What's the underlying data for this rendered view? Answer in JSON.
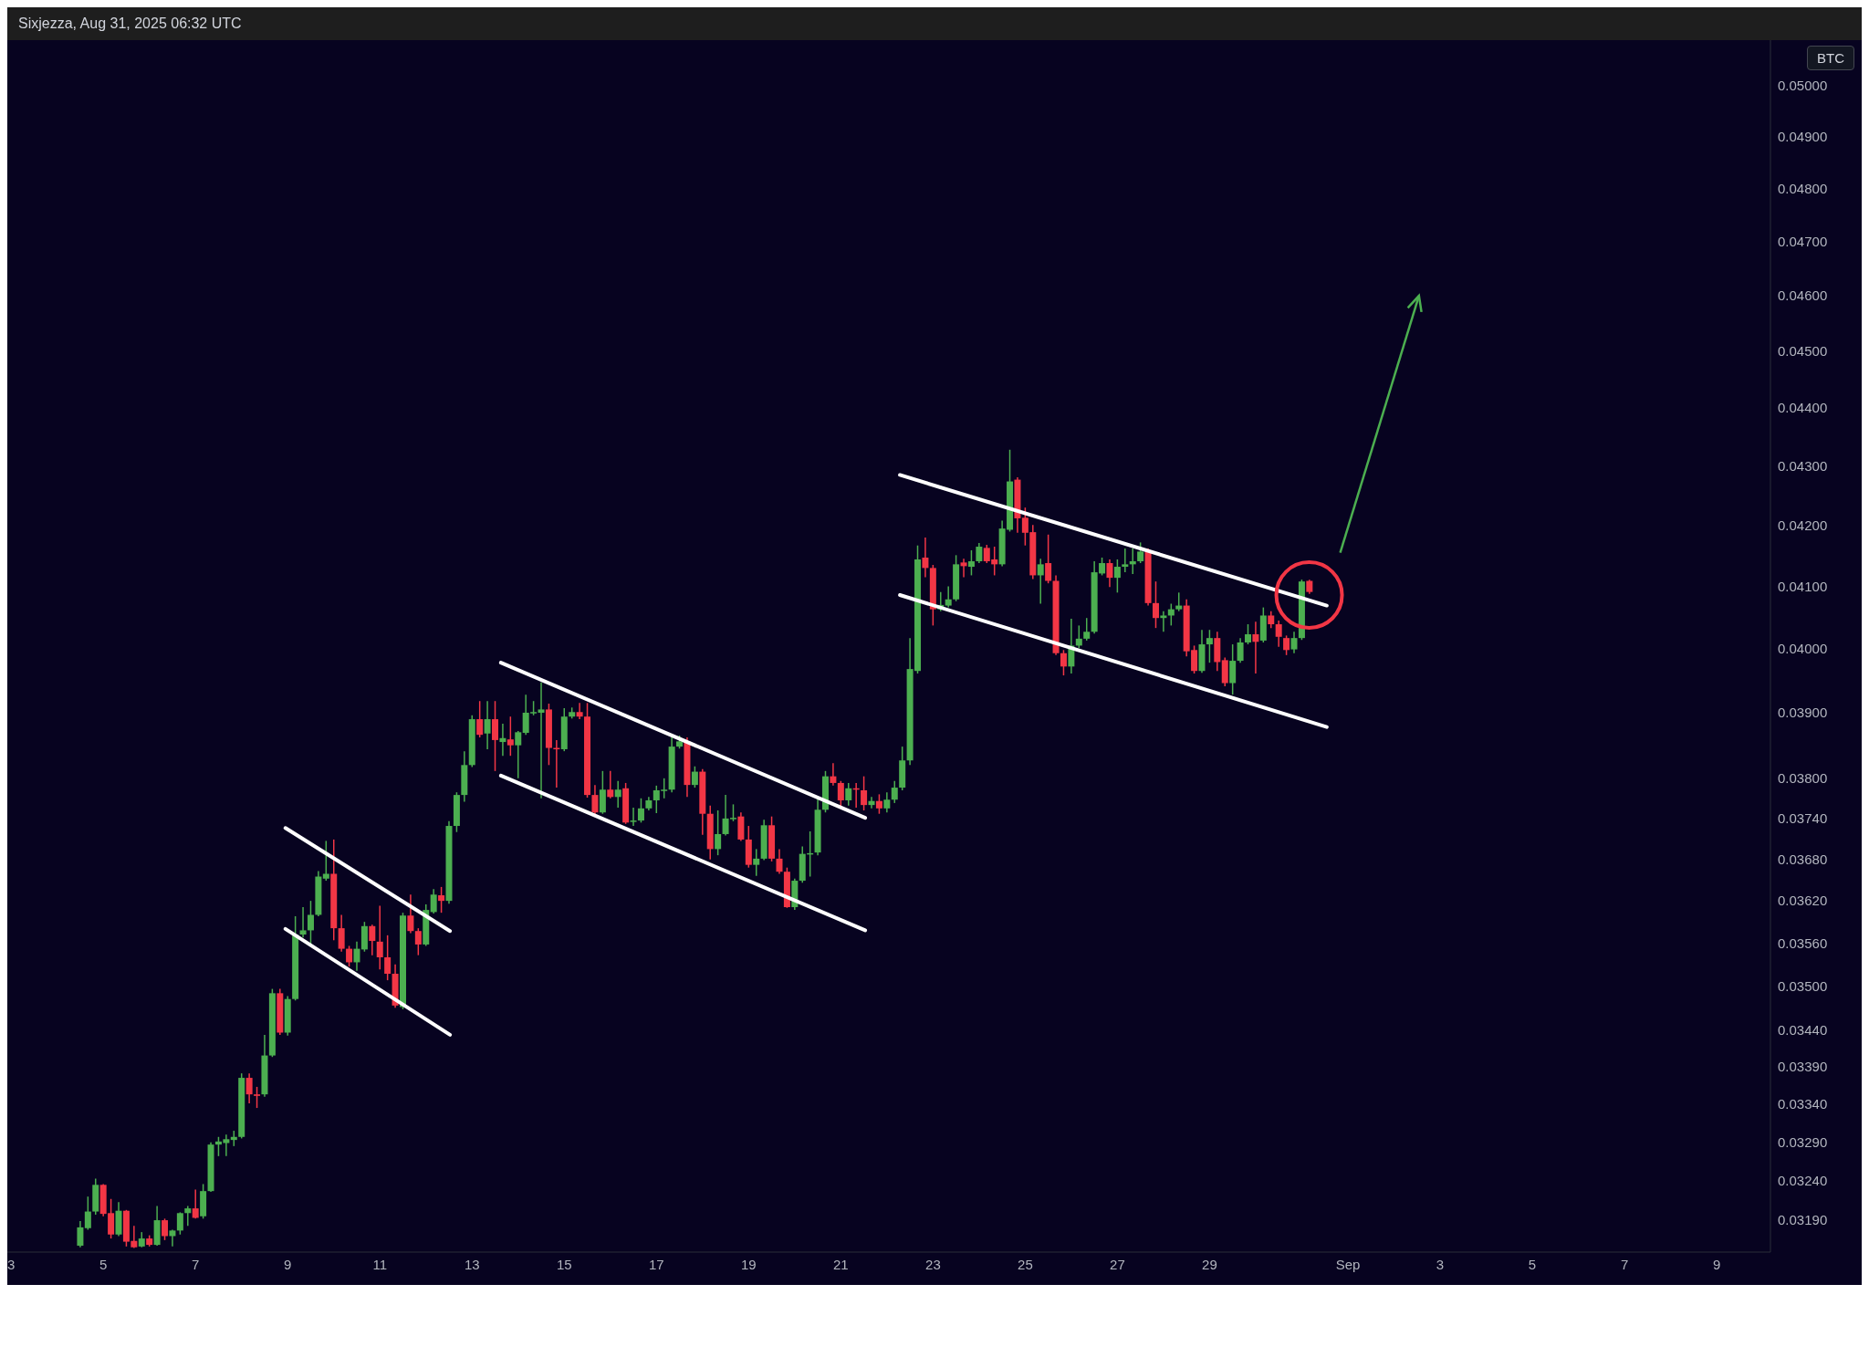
{
  "chart_data": {
    "type": "candlestick",
    "annotations": [
      "Sixjezza, Aug 31, 2025 06:32 UTC"
    ],
    "ylabel": "BTC",
    "log": true,
    "xlim": [
      "2025-08-02T22:00",
      "2025-09-10T04:00"
    ],
    "xticks": [
      {
        "value": "2025-08-03",
        "label": "3"
      },
      {
        "value": "2025-08-05",
        "label": "5"
      },
      {
        "value": "2025-08-07",
        "label": "7"
      },
      {
        "value": "2025-08-09",
        "label": "9"
      },
      {
        "value": "2025-08-11",
        "label": "11"
      },
      {
        "value": "2025-08-13",
        "label": "13"
      },
      {
        "value": "2025-08-15",
        "label": "15"
      },
      {
        "value": "2025-08-17",
        "label": "17"
      },
      {
        "value": "2025-08-19",
        "label": "19"
      },
      {
        "value": "2025-08-21",
        "label": "21"
      },
      {
        "value": "2025-08-23",
        "label": "23"
      },
      {
        "value": "2025-08-25",
        "label": "25"
      },
      {
        "value": "2025-08-27",
        "label": "27"
      },
      {
        "value": "2025-08-29",
        "label": "29"
      },
      {
        "value": "2025-09-01",
        "label": "Sep"
      },
      {
        "value": "2025-09-03",
        "label": "3"
      },
      {
        "value": "2025-09-05",
        "label": "5"
      },
      {
        "value": "2025-09-07",
        "label": "7"
      },
      {
        "value": "2025-09-09",
        "label": "9"
      }
    ],
    "ylim": [
      0.0315,
      0.0509
    ],
    "yticks": [
      {
        "value": 0.05,
        "label": "0.05000"
      },
      {
        "value": 0.049,
        "label": "0.04900"
      },
      {
        "value": 0.048,
        "label": "0.04800"
      },
      {
        "value": 0.047,
        "label": "0.04700"
      },
      {
        "value": 0.046,
        "label": "0.04600"
      },
      {
        "value": 0.045,
        "label": "0.04500"
      },
      {
        "value": 0.044,
        "label": "0.04400"
      },
      {
        "value": 0.043,
        "label": "0.04300"
      },
      {
        "value": 0.042,
        "label": "0.04200"
      },
      {
        "value": 0.041,
        "label": "0.04100"
      },
      {
        "value": 0.04,
        "label": "0.04000"
      },
      {
        "value": 0.039,
        "label": "0.03900"
      },
      {
        "value": 0.038,
        "label": "0.03800"
      },
      {
        "value": 0.0374,
        "label": "0.03740"
      },
      {
        "value": 0.0368,
        "label": "0.03680"
      },
      {
        "value": 0.0362,
        "label": "0.03620"
      },
      {
        "value": 0.0356,
        "label": "0.03560"
      },
      {
        "value": 0.035,
        "label": "0.03500"
      },
      {
        "value": 0.0344,
        "label": "0.03440"
      },
      {
        "value": 0.0339,
        "label": "0.03390"
      },
      {
        "value": 0.0334,
        "label": "0.03340"
      },
      {
        "value": 0.0329,
        "label": "0.03290"
      },
      {
        "value": 0.0324,
        "label": "0.03240"
      },
      {
        "value": 0.0319,
        "label": "0.03190"
      }
    ],
    "x": [
      "2025-08-04T12:00",
      "2025-08-04T16:00",
      "2025-08-04T20:00",
      "2025-08-05T00:00",
      "2025-08-05T04:00",
      "2025-08-05T08:00",
      "2025-08-05T12:00",
      "2025-08-05T16:00",
      "2025-08-05T20:00",
      "2025-08-06T00:00",
      "2025-08-06T04:00",
      "2025-08-06T08:00",
      "2025-08-06T12:00",
      "2025-08-06T16:00",
      "2025-08-06T20:00",
      "2025-08-07T00:00",
      "2025-08-07T04:00",
      "2025-08-07T08:00",
      "2025-08-07T12:00",
      "2025-08-07T16:00",
      "2025-08-07T20:00",
      "2025-08-08T00:00",
      "2025-08-08T04:00",
      "2025-08-08T08:00",
      "2025-08-08T12:00",
      "2025-08-08T16:00",
      "2025-08-08T20:00",
      "2025-08-09T00:00",
      "2025-08-09T04:00",
      "2025-08-09T08:00",
      "2025-08-09T12:00",
      "2025-08-09T16:00",
      "2025-08-09T20:00",
      "2025-08-10T00:00",
      "2025-08-10T04:00",
      "2025-08-10T08:00",
      "2025-08-10T12:00",
      "2025-08-10T16:00",
      "2025-08-10T20:00",
      "2025-08-11T00:00",
      "2025-08-11T04:00",
      "2025-08-11T08:00",
      "2025-08-11T12:00",
      "2025-08-11T16:00",
      "2025-08-11T20:00",
      "2025-08-12T00:00",
      "2025-08-12T04:00",
      "2025-08-12T08:00",
      "2025-08-12T12:00",
      "2025-08-12T16:00",
      "2025-08-12T20:00",
      "2025-08-13T00:00",
      "2025-08-13T04:00",
      "2025-08-13T08:00",
      "2025-08-13T12:00",
      "2025-08-13T16:00",
      "2025-08-13T20:00",
      "2025-08-14T00:00",
      "2025-08-14T04:00",
      "2025-08-14T08:00",
      "2025-08-14T12:00",
      "2025-08-14T16:00",
      "2025-08-14T20:00",
      "2025-08-15T00:00",
      "2025-08-15T04:00",
      "2025-08-15T08:00",
      "2025-08-15T12:00",
      "2025-08-15T16:00",
      "2025-08-15T20:00",
      "2025-08-16T00:00",
      "2025-08-16T04:00",
      "2025-08-16T08:00",
      "2025-08-16T12:00",
      "2025-08-16T16:00",
      "2025-08-16T20:00",
      "2025-08-17T00:00",
      "2025-08-17T04:00",
      "2025-08-17T08:00",
      "2025-08-17T12:00",
      "2025-08-17T16:00",
      "2025-08-17T20:00",
      "2025-08-18T00:00",
      "2025-08-18T04:00",
      "2025-08-18T08:00",
      "2025-08-18T12:00",
      "2025-08-18T16:00",
      "2025-08-18T20:00",
      "2025-08-19T00:00",
      "2025-08-19T04:00",
      "2025-08-19T08:00",
      "2025-08-19T12:00",
      "2025-08-19T16:00",
      "2025-08-19T20:00",
      "2025-08-20T00:00",
      "2025-08-20T04:00",
      "2025-08-20T08:00",
      "2025-08-20T12:00",
      "2025-08-20T16:00",
      "2025-08-20T20:00",
      "2025-08-21T00:00",
      "2025-08-21T04:00",
      "2025-08-21T08:00",
      "2025-08-21T12:00",
      "2025-08-21T16:00",
      "2025-08-21T20:00",
      "2025-08-22T00:00",
      "2025-08-22T04:00",
      "2025-08-22T08:00",
      "2025-08-22T12:00",
      "2025-08-22T16:00",
      "2025-08-22T20:00",
      "2025-08-23T00:00",
      "2025-08-23T04:00",
      "2025-08-23T08:00",
      "2025-08-23T12:00",
      "2025-08-23T16:00",
      "2025-08-23T20:00",
      "2025-08-24T00:00",
      "2025-08-24T04:00",
      "2025-08-24T08:00",
      "2025-08-24T12:00",
      "2025-08-24T16:00",
      "2025-08-24T20:00",
      "2025-08-25T00:00",
      "2025-08-25T04:00",
      "2025-08-25T08:00",
      "2025-08-25T12:00",
      "2025-08-25T16:00",
      "2025-08-25T20:00",
      "2025-08-26T00:00",
      "2025-08-26T04:00",
      "2025-08-26T08:00",
      "2025-08-26T12:00",
      "2025-08-26T16:00",
      "2025-08-26T20:00",
      "2025-08-27T00:00",
      "2025-08-27T04:00",
      "2025-08-27T08:00",
      "2025-08-27T12:00",
      "2025-08-27T16:00",
      "2025-08-27T20:00",
      "2025-08-28T00:00",
      "2025-08-28T04:00",
      "2025-08-28T08:00",
      "2025-08-28T12:00",
      "2025-08-28T16:00",
      "2025-08-28T20:00",
      "2025-08-29T00:00",
      "2025-08-29T04:00",
      "2025-08-29T08:00",
      "2025-08-29T12:00",
      "2025-08-29T16:00",
      "2025-08-29T20:00",
      "2025-08-30T00:00",
      "2025-08-30T04:00",
      "2025-08-30T08:00",
      "2025-08-30T12:00",
      "2025-08-30T16:00",
      "2025-08-30T20:00",
      "2025-08-31T00:00",
      "2025-08-31T04:00"
    ],
    "ohlc": [
      [
        0.03158,
        0.03189,
        0.03156,
        0.03181
      ],
      [
        0.0318,
        0.0322,
        0.03178,
        0.03201
      ],
      [
        0.03201,
        0.03243,
        0.03197,
        0.03235
      ],
      [
        0.03235,
        0.03236,
        0.03195,
        0.03198
      ],
      [
        0.03199,
        0.03217,
        0.03167,
        0.03172
      ],
      [
        0.03172,
        0.03213,
        0.0317,
        0.03202
      ],
      [
        0.03202,
        0.03203,
        0.03157,
        0.03163
      ],
      [
        0.03164,
        0.03183,
        0.03155,
        0.03156
      ],
      [
        0.03157,
        0.03175,
        0.03156,
        0.03167
      ],
      [
        0.03167,
        0.03171,
        0.03157,
        0.03159
      ],
      [
        0.03159,
        0.03208,
        0.03158,
        0.0319
      ],
      [
        0.0319,
        0.03192,
        0.03165,
        0.0317
      ],
      [
        0.0317,
        0.03178,
        0.03157,
        0.03177
      ],
      [
        0.03177,
        0.032,
        0.03172,
        0.03199
      ],
      [
        0.03199,
        0.03208,
        0.03183,
        0.03205
      ],
      [
        0.03205,
        0.03229,
        0.03192,
        0.03193
      ],
      [
        0.03195,
        0.03236,
        0.03192,
        0.03227
      ],
      [
        0.03227,
        0.0329,
        0.03226,
        0.03287
      ],
      [
        0.03287,
        0.03297,
        0.03272,
        0.03291
      ],
      [
        0.03289,
        0.033,
        0.03272,
        0.03294
      ],
      [
        0.03293,
        0.03305,
        0.03285,
        0.03297
      ],
      [
        0.03297,
        0.03381,
        0.03295,
        0.03375
      ],
      [
        0.03375,
        0.03381,
        0.03341,
        0.03353
      ],
      [
        0.03353,
        0.03363,
        0.03335,
        0.03351
      ],
      [
        0.03353,
        0.03433,
        0.0335,
        0.03405
      ],
      [
        0.03405,
        0.03496,
        0.03403,
        0.0349
      ],
      [
        0.0349,
        0.03496,
        0.03433,
        0.03436
      ],
      [
        0.03436,
        0.03486,
        0.03432,
        0.03482
      ],
      [
        0.03482,
        0.03598,
        0.0348,
        0.03572
      ],
      [
        0.03572,
        0.03611,
        0.03568,
        0.03578
      ],
      [
        0.03578,
        0.0362,
        0.03559,
        0.036
      ],
      [
        0.036,
        0.03663,
        0.03598,
        0.03655
      ],
      [
        0.03652,
        0.03707,
        0.03649,
        0.03659
      ],
      [
        0.03659,
        0.03709,
        0.03564,
        0.03581
      ],
      [
        0.03581,
        0.036,
        0.03548,
        0.03552
      ],
      [
        0.03552,
        0.03556,
        0.03527,
        0.03533
      ],
      [
        0.03533,
        0.03562,
        0.03521,
        0.03552
      ],
      [
        0.03551,
        0.0359,
        0.03548,
        0.03584
      ],
      [
        0.03584,
        0.03586,
        0.03543,
        0.03563
      ],
      [
        0.03562,
        0.03613,
        0.03523,
        0.0354
      ],
      [
        0.0354,
        0.03571,
        0.03508,
        0.03517
      ],
      [
        0.03517,
        0.0353,
        0.0347,
        0.03473
      ],
      [
        0.03471,
        0.03603,
        0.03468,
        0.03599
      ],
      [
        0.03599,
        0.03629,
        0.03574,
        0.03577
      ],
      [
        0.03577,
        0.03581,
        0.03543,
        0.03558
      ],
      [
        0.03558,
        0.03615,
        0.03556,
        0.03607
      ],
      [
        0.03604,
        0.03637,
        0.03602,
        0.03629
      ],
      [
        0.03628,
        0.0364,
        0.03603,
        0.0362
      ],
      [
        0.0362,
        0.03736,
        0.03616,
        0.03729
      ],
      [
        0.03729,
        0.03779,
        0.0372,
        0.03775
      ],
      [
        0.03775,
        0.03841,
        0.03765,
        0.0382
      ],
      [
        0.0382,
        0.03896,
        0.03817,
        0.0389
      ],
      [
        0.0389,
        0.03918,
        0.03862,
        0.03866
      ],
      [
        0.03868,
        0.03918,
        0.03844,
        0.0389
      ],
      [
        0.0389,
        0.03918,
        0.03811,
        0.03858
      ],
      [
        0.03855,
        0.03883,
        0.03834,
        0.03861
      ],
      [
        0.03859,
        0.03894,
        0.03834,
        0.0385
      ],
      [
        0.0385,
        0.03872,
        0.038,
        0.0387
      ],
      [
        0.03869,
        0.03928,
        0.03866,
        0.039
      ],
      [
        0.039,
        0.03918,
        0.03896,
        0.03901
      ],
      [
        0.039,
        0.03947,
        0.0377,
        0.03905
      ],
      [
        0.03905,
        0.03914,
        0.0382,
        0.03846
      ],
      [
        0.03846,
        0.03858,
        0.03786,
        0.03844
      ],
      [
        0.03844,
        0.03907,
        0.03841,
        0.03894
      ],
      [
        0.03894,
        0.03908,
        0.03891,
        0.03901
      ],
      [
        0.03901,
        0.03915,
        0.0389,
        0.03894
      ],
      [
        0.03894,
        0.03915,
        0.03771,
        0.03775
      ],
      [
        0.03775,
        0.0379,
        0.03743,
        0.03749
      ],
      [
        0.03749,
        0.03811,
        0.03747,
        0.03783
      ],
      [
        0.03783,
        0.03811,
        0.0377,
        0.03772
      ],
      [
        0.03772,
        0.03796,
        0.03756,
        0.03783
      ],
      [
        0.03785,
        0.03793,
        0.03732,
        0.03734
      ],
      [
        0.03736,
        0.03756,
        0.03729,
        0.03737
      ],
      [
        0.03737,
        0.0377,
        0.03734,
        0.03755
      ],
      [
        0.03755,
        0.03772,
        0.03752,
        0.03767
      ],
      [
        0.03767,
        0.03789,
        0.03748,
        0.03782
      ],
      [
        0.03782,
        0.038,
        0.0377,
        0.03783
      ],
      [
        0.03783,
        0.03865,
        0.03779,
        0.03848
      ],
      [
        0.03848,
        0.03865,
        0.03845,
        0.03856
      ],
      [
        0.03856,
        0.03862,
        0.03772,
        0.0379
      ],
      [
        0.0379,
        0.03818,
        0.03786,
        0.0381
      ],
      [
        0.0381,
        0.03814,
        0.03716,
        0.03747
      ],
      [
        0.03747,
        0.03759,
        0.0368,
        0.03695
      ],
      [
        0.03695,
        0.03752,
        0.03686,
        0.03717
      ],
      [
        0.03717,
        0.03775,
        0.03715,
        0.0374
      ],
      [
        0.0374,
        0.03761,
        0.03736,
        0.03741
      ],
      [
        0.03743,
        0.03749,
        0.03707,
        0.03709
      ],
      [
        0.03709,
        0.03729,
        0.03668,
        0.03672
      ],
      [
        0.03672,
        0.03695,
        0.03656,
        0.03681
      ],
      [
        0.03681,
        0.03738,
        0.03679,
        0.0373
      ],
      [
        0.0373,
        0.03743,
        0.03677,
        0.03681
      ],
      [
        0.03681,
        0.03695,
        0.03659,
        0.03662
      ],
      [
        0.03662,
        0.03668,
        0.0361,
        0.03611
      ],
      [
        0.03611,
        0.03652,
        0.03607,
        0.03649
      ],
      [
        0.03649,
        0.03699,
        0.03646,
        0.03688
      ],
      [
        0.03688,
        0.03721,
        0.03655,
        0.03689
      ],
      [
        0.0369,
        0.0377,
        0.03686,
        0.03753
      ],
      [
        0.03753,
        0.03811,
        0.03749,
        0.03803
      ],
      [
        0.03803,
        0.03823,
        0.03789,
        0.03793
      ],
      [
        0.03793,
        0.03796,
        0.03756,
        0.03767
      ],
      [
        0.03767,
        0.03793,
        0.03759,
        0.03785
      ],
      [
        0.03785,
        0.03793,
        0.03756,
        0.03784
      ],
      [
        0.03782,
        0.03803,
        0.03752,
        0.0376
      ],
      [
        0.0376,
        0.03772,
        0.03755,
        0.03766
      ],
      [
        0.03766,
        0.03776,
        0.03747,
        0.03755
      ],
      [
        0.03755,
        0.03779,
        0.03749,
        0.03768
      ],
      [
        0.03768,
        0.03796,
        0.03763,
        0.03786
      ],
      [
        0.03786,
        0.03848,
        0.03782,
        0.03827
      ],
      [
        0.03827,
        0.04017,
        0.0382,
        0.03968
      ],
      [
        0.03965,
        0.04167,
        0.03961,
        0.04144
      ],
      [
        0.04147,
        0.0418,
        0.04115,
        0.0413
      ],
      [
        0.0413,
        0.04135,
        0.04037,
        0.04063
      ],
      [
        0.04063,
        0.04091,
        0.0406,
        0.0407
      ],
      [
        0.04069,
        0.041,
        0.04066,
        0.04079
      ],
      [
        0.04079,
        0.04151,
        0.04076,
        0.04136
      ],
      [
        0.04139,
        0.04145,
        0.04115,
        0.04133
      ],
      [
        0.04132,
        0.04159,
        0.04118,
        0.04141
      ],
      [
        0.04141,
        0.04171,
        0.04138,
        0.04165
      ],
      [
        0.04163,
        0.04168,
        0.04138,
        0.04141
      ],
      [
        0.04144,
        0.04165,
        0.04118,
        0.04136
      ],
      [
        0.04136,
        0.04208,
        0.04133,
        0.04195
      ],
      [
        0.04193,
        0.04328,
        0.0419,
        0.04274
      ],
      [
        0.04277,
        0.04281,
        0.04188,
        0.04212
      ],
      [
        0.04213,
        0.0423,
        0.04167,
        0.04188
      ],
      [
        0.04189,
        0.04201,
        0.04112,
        0.04118
      ],
      [
        0.04118,
        0.04145,
        0.04072,
        0.04136
      ],
      [
        0.04138,
        0.04185,
        0.04105,
        0.04109
      ],
      [
        0.04109,
        0.04118,
        0.0399,
        0.03993
      ],
      [
        0.03993,
        0.03998,
        0.03958,
        0.03972
      ],
      [
        0.03972,
        0.04048,
        0.03961,
        0.04005
      ],
      [
        0.04005,
        0.04037,
        0.04001,
        0.04016
      ],
      [
        0.04016,
        0.04049,
        0.04013,
        0.04027
      ],
      [
        0.04027,
        0.04141,
        0.04024,
        0.04123
      ],
      [
        0.04121,
        0.04147,
        0.04118,
        0.04138
      ],
      [
        0.04138,
        0.04144,
        0.04099,
        0.04114
      ],
      [
        0.04114,
        0.04144,
        0.0409,
        0.04132
      ],
      [
        0.04132,
        0.04162,
        0.04123,
        0.04136
      ],
      [
        0.04136,
        0.04162,
        0.0412,
        0.04141
      ],
      [
        0.04141,
        0.04172,
        0.04138,
        0.04157
      ],
      [
        0.04157,
        0.04162,
        0.04069,
        0.04073
      ],
      [
        0.04073,
        0.04108,
        0.04033,
        0.04049
      ],
      [
        0.04049,
        0.0406,
        0.04027,
        0.04053
      ],
      [
        0.04053,
        0.04072,
        0.04037,
        0.04063
      ],
      [
        0.04063,
        0.0409,
        0.0406,
        0.04069
      ],
      [
        0.04069,
        0.04079,
        0.03988,
        0.03996
      ],
      [
        0.03998,
        0.04005,
        0.03961,
        0.03965
      ],
      [
        0.03965,
        0.0403,
        0.03962,
        0.04007
      ],
      [
        0.04007,
        0.0403,
        0.03978,
        0.04017
      ],
      [
        0.04017,
        0.04027,
        0.03965,
        0.03979
      ],
      [
        0.03982,
        0.03986,
        0.03941,
        0.03946
      ],
      [
        0.03946,
        0.04007,
        0.03928,
        0.03981
      ],
      [
        0.03981,
        0.04017,
        0.03978,
        0.0401
      ],
      [
        0.0401,
        0.04039,
        0.04007,
        0.04023
      ],
      [
        0.04023,
        0.04043,
        0.03961,
        0.04011
      ],
      [
        0.04013,
        0.04066,
        0.0401,
        0.04053
      ],
      [
        0.04053,
        0.0406,
        0.04033,
        0.04039
      ],
      [
        0.04039,
        0.04045,
        0.04003,
        0.04019
      ],
      [
        0.04017,
        0.04021,
        0.0399,
        0.03998
      ],
      [
        0.03999,
        0.04027,
        0.03993,
        0.04017
      ],
      [
        0.04017,
        0.04111,
        0.04014,
        0.04108
      ],
      [
        0.04109,
        0.04111,
        0.04088,
        0.04091
      ]
    ],
    "colors": [
      "#4caf50",
      "#4caf50",
      "#4caf50",
      "#f23645",
      "#f23645",
      "#4caf50",
      "#f23645",
      "#f23645",
      "#4caf50",
      "#f23645",
      "#4caf50",
      "#f23645",
      "#4caf50",
      "#4caf50",
      "#4caf50",
      "#f23645",
      "#4caf50",
      "#4caf50",
      "#4caf50",
      "#4caf50",
      "#4caf50",
      "#4caf50",
      "#f23645",
      "#f23645",
      "#4caf50",
      "#4caf50",
      "#f23645",
      "#4caf50",
      "#4caf50",
      "#4caf50",
      "#4caf50",
      "#4caf50",
      "#4caf50",
      "#f23645",
      "#f23645",
      "#f23645",
      "#4caf50",
      "#4caf50",
      "#f23645",
      "#f23645",
      "#f23645",
      "#f23645",
      "#4caf50",
      "#f23645",
      "#f23645",
      "#4caf50",
      "#4caf50",
      "#f23645",
      "#4caf50",
      "#4caf50",
      "#4caf50",
      "#4caf50",
      "#f23645",
      "#4caf50",
      "#f23645",
      "#4caf50",
      "#f23645",
      "#4caf50",
      "#4caf50",
      "#4caf50",
      "#4caf50",
      "#f23645",
      "#f23645",
      "#4caf50",
      "#4caf50",
      "#f23645",
      "#f23645",
      "#f23645",
      "#4caf50",
      "#f23645",
      "#4caf50",
      "#f23645",
      "#4caf50",
      "#4caf50",
      "#4caf50",
      "#4caf50",
      "#4caf50",
      "#4caf50",
      "#4caf50",
      "#f23645",
      "#4caf50",
      "#f23645",
      "#f23645",
      "#4caf50",
      "#4caf50",
      "#4caf50",
      "#f23645",
      "#f23645",
      "#4caf50",
      "#4caf50",
      "#f23645",
      "#f23645",
      "#f23645",
      "#4caf50",
      "#4caf50",
      "#4caf50",
      "#4caf50",
      "#4caf50",
      "#f23645",
      "#f23645",
      "#4caf50",
      "#f23645",
      "#f23645",
      "#4caf50",
      "#f23645",
      "#4caf50",
      "#4caf50",
      "#4caf50",
      "#4caf50",
      "#4caf50",
      "#f23645",
      "#f23645",
      "#4caf50",
      "#4caf50",
      "#4caf50",
      "#f23645",
      "#4caf50",
      "#4caf50",
      "#f23645",
      "#f23645",
      "#4caf50",
      "#4caf50",
      "#f23645",
      "#f23645",
      "#f23645",
      "#4caf50",
      "#f23645",
      "#f23645",
      "#f23645",
      "#4caf50",
      "#4caf50",
      "#4caf50",
      "#4caf50",
      "#4caf50",
      "#f23645",
      "#4caf50",
      "#4caf50",
      "#4caf50",
      "#4caf50",
      "#f23645",
      "#f23645",
      "#4caf50",
      "#4caf50",
      "#4caf50",
      "#f23645",
      "#f23645",
      "#4caf50",
      "#4caf50",
      "#f23645",
      "#f23645",
      "#4caf50",
      "#4caf50",
      "#4caf50",
      "#f23645",
      "#4caf50",
      "#f23645",
      "#f23645",
      "#f23645",
      "#4caf50",
      "#4caf50",
      "#f23645"
    ],
    "series": [
      {
        "type": "line",
        "color": "#ffffff",
        "x": [
          "2025-08-08T22:48",
          "2025-08-12T12:30"
        ],
        "values": [
          0.03726,
          0.03577
        ]
      },
      {
        "type": "line",
        "color": "#ffffff",
        "x": [
          "2025-08-08T22:48",
          "2025-08-12T12:30"
        ],
        "values": [
          0.0358,
          0.03433
        ]
      },
      {
        "type": "line",
        "color": "#ffffff",
        "x": [
          "2025-08-13T15:00",
          "2025-08-21T12:40"
        ],
        "values": [
          0.03978,
          0.03741
        ]
      },
      {
        "type": "line",
        "color": "#ffffff",
        "x": [
          "2025-08-13T15:00",
          "2025-08-21T12:40"
        ],
        "values": [
          0.03804,
          0.03578
        ]
      },
      {
        "type": "line",
        "color": "#ffffff",
        "x": [
          "2025-08-22T06:45",
          "2025-08-31T13:00"
        ],
        "values": [
          0.04285,
          0.04069
        ]
      },
      {
        "type": "line",
        "color": "#ffffff",
        "x": [
          "2025-08-22T06:45",
          "2025-08-31T13:00"
        ],
        "values": [
          0.04086,
          0.03878
        ]
      }
    ]
  }
}
